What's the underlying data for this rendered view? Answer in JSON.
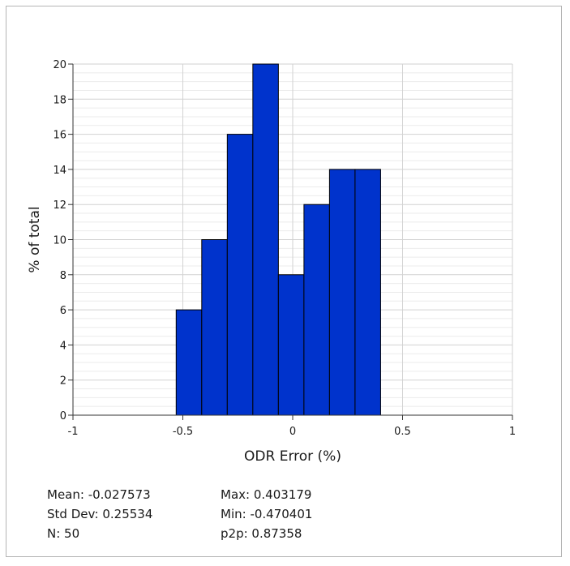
{
  "chart_data": {
    "type": "bar",
    "xlabel": "ODR Error (%)",
    "ylabel": "% of total",
    "xlim": [
      -1,
      1
    ],
    "ylim": [
      0,
      20
    ],
    "x_ticks": [
      "-1",
      "-0.5",
      "0",
      "0.5",
      "1"
    ],
    "y_ticks": [
      "0",
      "2",
      "4",
      "6",
      "8",
      "10",
      "12",
      "14",
      "16",
      "18",
      "20"
    ],
    "bin_width": 0.1163,
    "bins": [
      {
        "x_start": -0.5303,
        "value": 6
      },
      {
        "x_start": -0.414,
        "value": 10
      },
      {
        "x_start": -0.2977,
        "value": 16
      },
      {
        "x_start": -0.1814,
        "value": 20
      },
      {
        "x_start": -0.0651,
        "value": 8
      },
      {
        "x_start": 0.0512,
        "value": 12
      },
      {
        "x_start": 0.1675,
        "value": 14
      },
      {
        "x_start": 0.2838,
        "value": 14
      }
    ],
    "bar_color": "#0033cc",
    "grid": true
  },
  "stats": {
    "mean": "Mean: -0.027573",
    "std_dev": "Std Dev: 0.25534",
    "n": "N: 50",
    "max": "Max: 0.403179",
    "min": "Min: -0.470401",
    "p2p": "p2p: 0.87358"
  }
}
